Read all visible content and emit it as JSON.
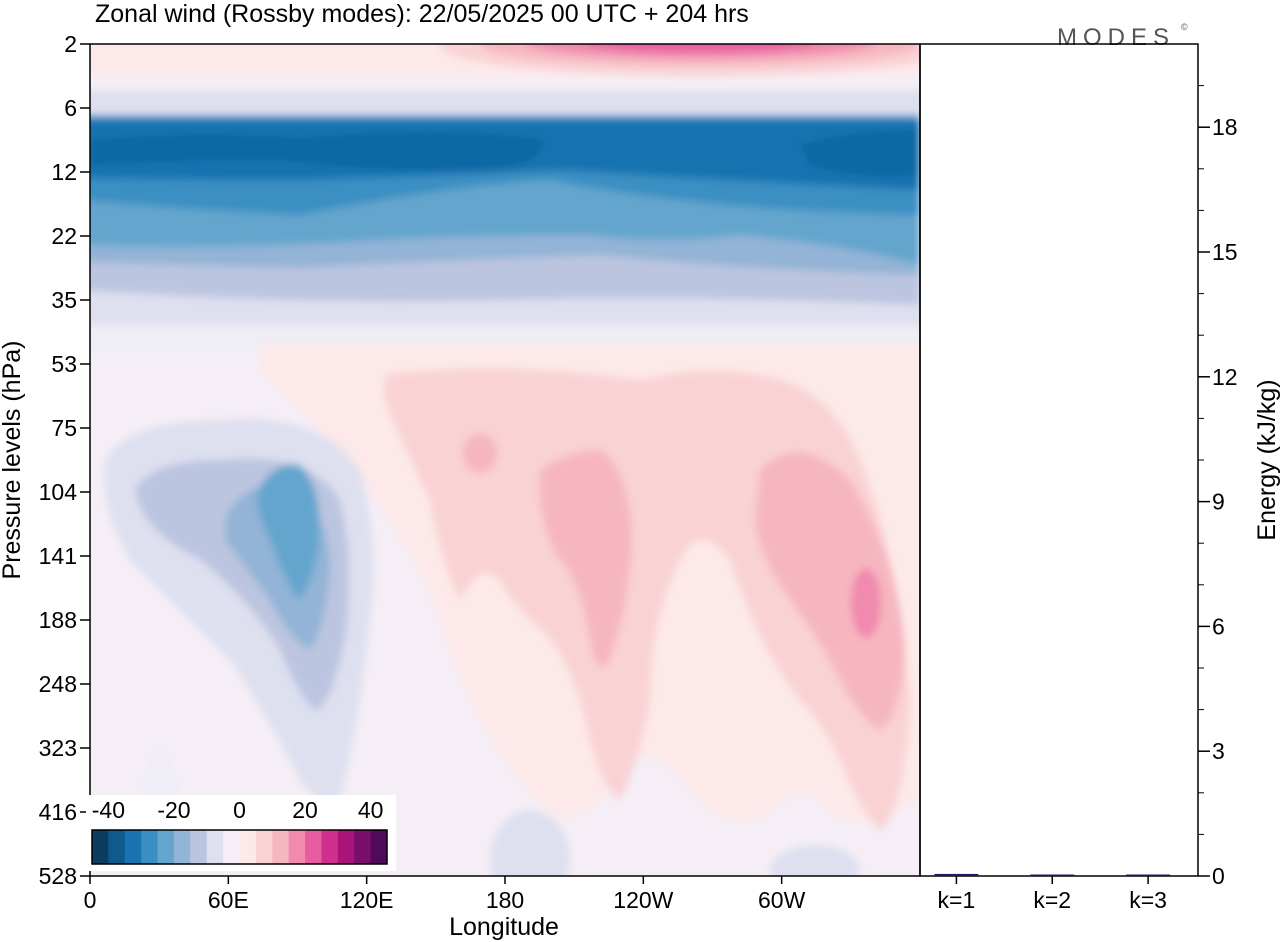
{
  "chart_data": {
    "type": "heatmap",
    "title": "Zonal wind (Rossby modes):  22/05/2025  00 UTC  + 204 hrs",
    "logo": "MODES",
    "logo_mark": "©",
    "xlabel": "Longitude",
    "ylabel": "Pressure levels (hPa)",
    "x_ticks": [
      "0",
      "60E",
      "120E",
      "180",
      "120W",
      "60W"
    ],
    "x_tick_values": [
      0,
      60,
      120,
      180,
      240,
      300
    ],
    "xlim": [
      0,
      360
    ],
    "y_ticks": [
      "2",
      "6",
      "12",
      "22",
      "35",
      "53",
      "75",
      "104",
      "141",
      "188",
      "248",
      "323",
      "416",
      "528"
    ],
    "y_scale": "pressure levels (inverted, top = 2 hPa)",
    "colorbar": {
      "tick_labels": [
        "-40",
        "-20",
        "0",
        "20",
        "40"
      ],
      "colors": [
        "#0d3d5e",
        "#0f5a8c",
        "#1873b0",
        "#3a8fc2",
        "#64a5cd",
        "#93b4d6",
        "#bcc5e0",
        "#dee0ef",
        "#f5eef6",
        "#fde9e9",
        "#f9d2d4",
        "#f6b6c0",
        "#f08aae",
        "#e75ea0",
        "#d12f8c",
        "#a8147a",
        "#7a0f6b",
        "#4f0a5a"
      ],
      "range": [
        -45,
        45
      ],
      "step": 5
    },
    "wind_features": [
      {
        "sign": "easterly",
        "core_value": -40,
        "level_range": [
          9,
          14
        ],
        "lon_range": [
          0,
          360
        ]
      },
      {
        "sign": "easterly",
        "core_value": -20,
        "level_range": [
          6,
          30
        ],
        "lon_range": [
          0,
          360
        ]
      },
      {
        "sign": "westerly",
        "core_value": 35,
        "level_range": [
          2,
          4
        ],
        "lon_range": [
          190,
          290
        ]
      },
      {
        "sign": "easterly",
        "core_value": -20,
        "level_range": [
          104,
          188
        ],
        "lon_range": [
          72,
          100
        ]
      },
      {
        "sign": "westerly",
        "core_value": 20,
        "level_range": [
          80,
          300
        ],
        "lon_range": [
          195,
          235
        ]
      },
      {
        "sign": "westerly",
        "core_value": 25,
        "level_range": [
          141,
          248
        ],
        "lon_range": [
          325,
          345
        ]
      }
    ],
    "energy_panel": {
      "ylabel": "Energy (kJ/kg)",
      "y_ticks": [
        "0",
        "3",
        "6",
        "9",
        "12",
        "15",
        "18"
      ],
      "ylim": [
        0,
        20
      ],
      "categories": [
        "k=1",
        "k=2",
        "k=3"
      ],
      "values": [
        0.05,
        0.02,
        0.01
      ],
      "bar_color": "#1a1a6e"
    }
  }
}
